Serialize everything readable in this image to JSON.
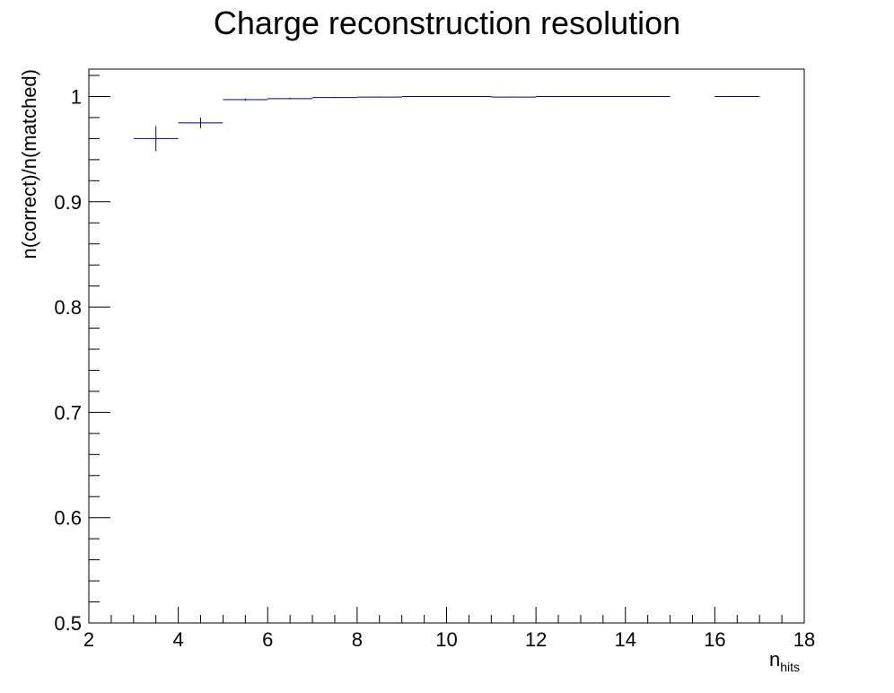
{
  "chart_data": {
    "type": "scatter",
    "title": "Charge reconstruction resolution",
    "xlabel": "n",
    "xlabel_subscript": "hits",
    "ylabel": "n(correct)/n(matched)",
    "xlim": [
      2,
      18
    ],
    "ylim": [
      0.5,
      1.026
    ],
    "x_ticks": [
      2,
      4,
      6,
      8,
      10,
      12,
      14,
      16,
      18
    ],
    "x_tick_labels": [
      "2",
      "4",
      "6",
      "8",
      "10",
      "12",
      "14",
      "16",
      "18"
    ],
    "y_ticks": [
      0.5,
      0.6,
      0.7,
      0.8,
      0.9,
      1.0
    ],
    "y_tick_labels": [
      "0.5",
      "0.6",
      "0.7",
      "0.8",
      "0.9",
      "1"
    ],
    "grid": false,
    "legend": "none",
    "marker_color": "#000080",
    "points": [
      {
        "x": 3.5,
        "x_low": 3,
        "x_high": 4,
        "y": 0.96,
        "y_err": 0.012
      },
      {
        "x": 4.5,
        "x_low": 4,
        "x_high": 5,
        "y": 0.975,
        "y_err": 0.005
      },
      {
        "x": 5.5,
        "x_low": 5,
        "x_high": 6,
        "y": 0.997,
        "y_err": 0.001
      },
      {
        "x": 6.5,
        "x_low": 6,
        "x_high": 7,
        "y": 0.998,
        "y_err": 0.0007
      },
      {
        "x": 7.5,
        "x_low": 7,
        "x_high": 8,
        "y": 0.999,
        "y_err": 0.0005
      },
      {
        "x": 8.5,
        "x_low": 8,
        "x_high": 9,
        "y": 0.9995,
        "y_err": 0.0004
      },
      {
        "x": 10,
        "x_low": 9,
        "x_high": 11,
        "y": 1.0,
        "y_err": 0.0003
      },
      {
        "x": 11.5,
        "x_low": 11,
        "x_high": 12,
        "y": 0.9995,
        "y_err": 0.0003
      },
      {
        "x": 13.5,
        "x_low": 12,
        "x_high": 15,
        "y": 1.0,
        "y_err": 0.0
      },
      {
        "x": 16.5,
        "x_low": 16,
        "x_high": 17,
        "y": 1.0,
        "y_err": 0.0
      }
    ]
  }
}
